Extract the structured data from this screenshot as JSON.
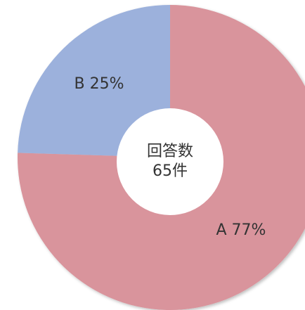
{
  "chart_data": {
    "type": "donut",
    "categories": [
      "A",
      "B"
    ],
    "values": [
      77,
      25
    ],
    "value_labels": [
      "77%",
      "25%"
    ],
    "colors": [
      "#d9949c",
      "#9cb1dc"
    ],
    "center_label": [
      "回答数",
      "65件"
    ]
  }
}
